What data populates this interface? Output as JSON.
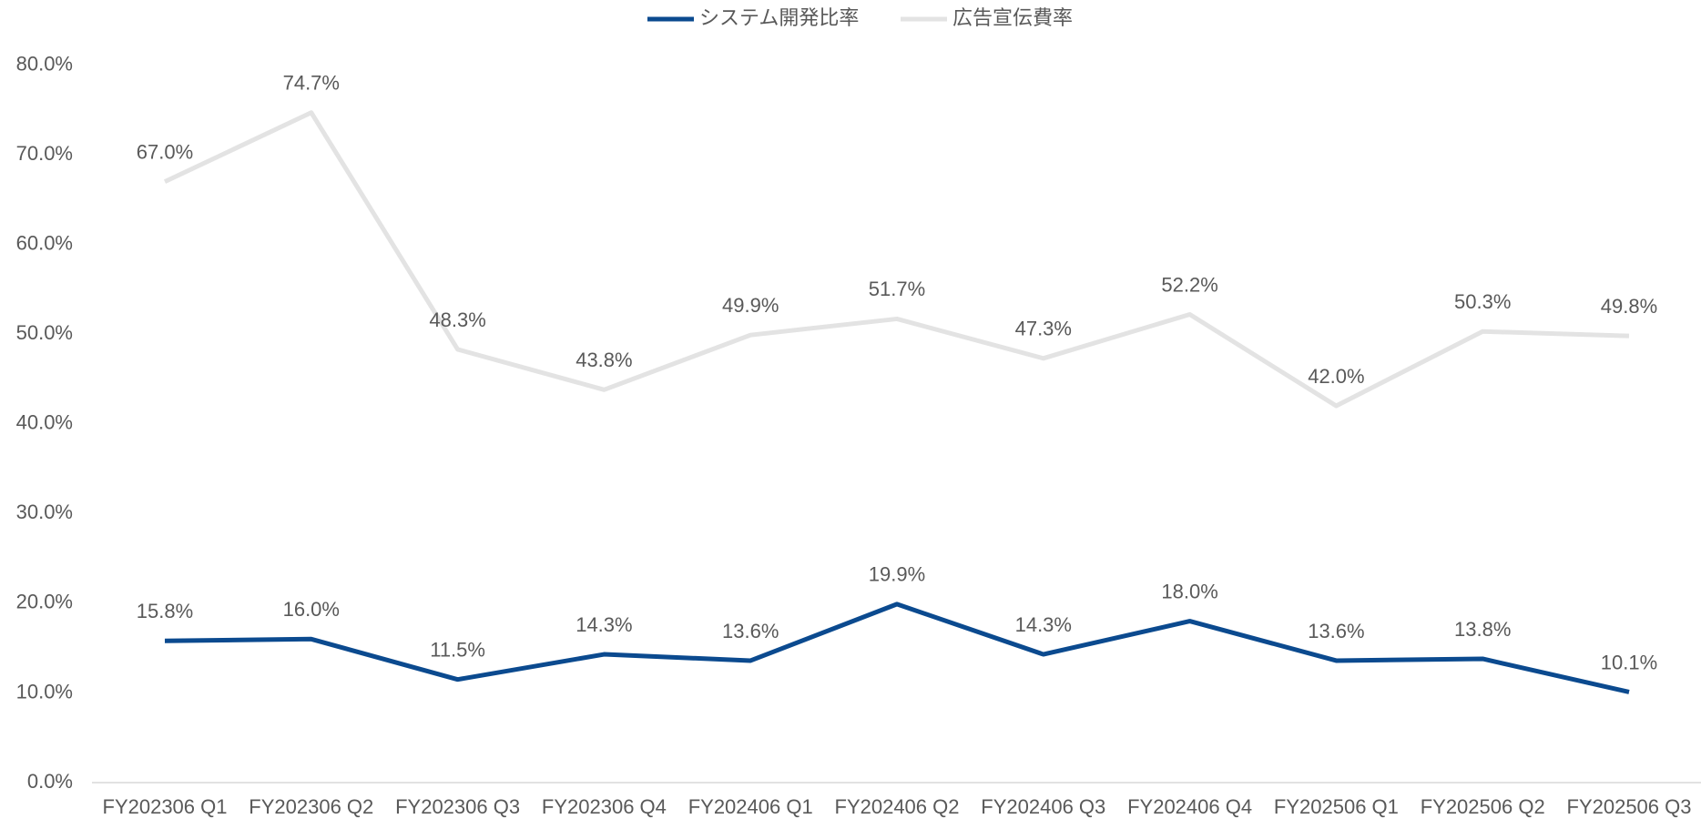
{
  "chart_data": {
    "type": "line",
    "categories": [
      "FY202306 Q1",
      "FY202306 Q2",
      "FY202306 Q3",
      "FY202306 Q4",
      "FY202406 Q1",
      "FY202406 Q2",
      "FY202406 Q3",
      "FY202406 Q4",
      "FY202506 Q1",
      "FY202506 Q2",
      "FY202506 Q3"
    ],
    "series": [
      {
        "name": "システム開発比率",
        "color": "#0b4a8f",
        "values": [
          15.8,
          16.0,
          11.5,
          14.3,
          13.6,
          19.9,
          14.3,
          18.0,
          13.6,
          13.8,
          10.1
        ],
        "value_labels": [
          "15.8%",
          "16.0%",
          "11.5%",
          "14.3%",
          "13.6%",
          "19.9%",
          "14.3%",
          "18.0%",
          "13.6%",
          "13.8%",
          "10.1%"
        ]
      },
      {
        "name": "広告宣伝費率",
        "color": "#e3e3e3",
        "values": [
          67.0,
          74.7,
          48.3,
          43.8,
          49.9,
          51.7,
          47.3,
          52.2,
          42.0,
          50.3,
          49.8
        ],
        "value_labels": [
          "67.0%",
          "74.7%",
          "48.3%",
          "43.8%",
          "49.9%",
          "51.7%",
          "47.3%",
          "52.2%",
          "42.0%",
          "50.3%",
          "49.8%"
        ]
      }
    ],
    "ylim": [
      0,
      80
    ],
    "yticks": [
      {
        "value": 0,
        "label": "0.0%"
      },
      {
        "value": 10,
        "label": "10.0%"
      },
      {
        "value": 20,
        "label": "20.0%"
      },
      {
        "value": 30,
        "label": "30.0%"
      },
      {
        "value": 40,
        "label": "40.0%"
      },
      {
        "value": 50,
        "label": "50.0%"
      },
      {
        "value": 60,
        "label": "60.0%"
      },
      {
        "value": 70,
        "label": "70.0%"
      },
      {
        "value": 80,
        "label": "80.0%"
      }
    ],
    "legend": "top",
    "grid": false
  }
}
